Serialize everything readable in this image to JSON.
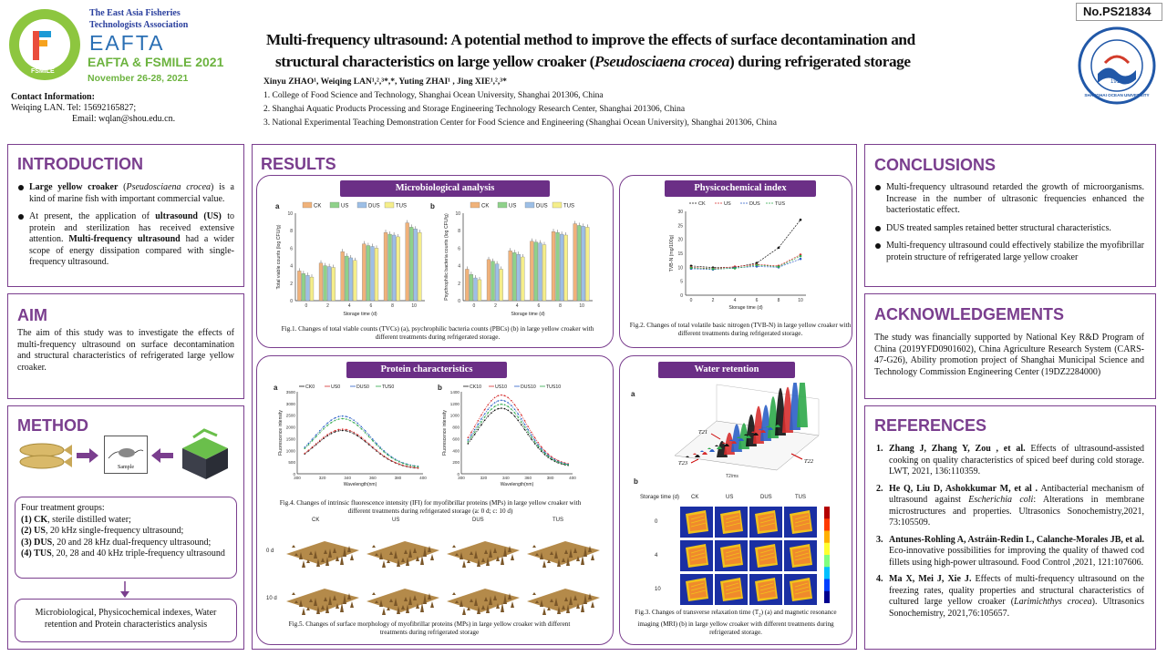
{
  "header": {
    "org_line1": "The East Asia Fisheries",
    "org_line2": "Technologists Association",
    "eafta": "EAFTA",
    "conference": "EAFTA & FSMILE 2021",
    "dates": "November 26-28, 2021",
    "logo_ring_text": "FSMILE",
    "poster_no": "No.PS21834",
    "title_line1": "Multi-frequency ultrasound: A potential method to improve the effects of surface decontamination and",
    "title_line2_a": "structural characteristics on large yellow croaker (",
    "title_line2_species": "Pseudosciaena crocea",
    "title_line2_b": ") during refrigerated storage",
    "authors": "Xinyu ZHAO¹,  Weiqing LAN¹,²,³*,*,  Yuting ZHAI¹ , Jing XIE¹,²,³*",
    "affil1": "1. College of Food Science and Technology, Shanghai Ocean University, Shanghai 201306, China",
    "affil2": "2. Shanghai Aquatic Products Processing and Storage Engineering Technology Research Center, Shanghai 201306, China",
    "affil3": "3. National Experimental Teaching Demonstration Center for Food Science and Engineering (Shanghai Ocean University), Shanghai 201306, China",
    "contact_title": "Contact Information:",
    "contact_line1": "Weiqing  LAN. Tel: 15692165827;",
    "contact_line2": "Email: wqlan@shou.edu.cn.",
    "university_logo_text": "SHANGHAI OCEAN UNIVERSITY",
    "university_year": "1912"
  },
  "introduction": {
    "title": "INTRODUCTION",
    "b1_bold": "Large yellow croaker",
    "b1_italic": "Pseudosciaena crocea",
    "b1_rest": "is a kind of marine fish with important commercial value.",
    "b2_a": "At present, the application of",
    "b2_bold1": "ultrasound (US)",
    "b2_b": "to protein and sterilization has received extensive attention.",
    "b2_bold2": "Multi-frequency ultrasound",
    "b2_c": "had a wider scope of energy dissipation compared with single-frequency ultrasound."
  },
  "aim": {
    "title": "AIM",
    "text": "The aim of this study was to investigate the effects of multi-frequency ultrasound on surface decontamination and structural characteristics of refrigerated large yellow croaker."
  },
  "method": {
    "title": "METHOD",
    "sample_label": "Sample",
    "groups_title": "Four treatment groups:",
    "g1_no": "(1)",
    "g1_name": "CK",
    "g1_desc": ", sterile distilled water;",
    "g2_no": "(2)",
    "g2_name": "US",
    "g2_desc": ", 20 kHz single-frequency ultrasound;",
    "g3_no": "(3)",
    "g3_name": "DUS",
    "g3_desc": ", 20 and 28 kHz dual-frequency ultrasound;",
    "g4_no": "(4)",
    "g4_name": "TUS",
    "g4_desc": ", 20, 28 and 40 kHz triple-frequency ultrasound",
    "analysis": "Microbiological, Physicochemical indexes, Water retention and Protein characteristics analysis"
  },
  "results": {
    "title": "RESULTS",
    "micro_title": "Microbiological analysis",
    "physico_title": "Physicochemical index",
    "protein_title": "Protein characteristics",
    "water_title": "Water retention",
    "fig1": "Fig.1. Changes of total viable counts (TVCs) (a), psychrophilic bacteria counts (PBCs) (b) in large yellow croaker with different treatments during refrigerated storage.",
    "fig2": "Fig.2. Changes of total volatile basic nitrogen (TVB-N) in large yellow croaker with different treatments during refrigerated storage.",
    "fig3_a": "Fig.3. Changes of transverse relaxation time (T",
    "fig3_sub": "2",
    "fig3_b": ") (a) and magnetic resonance imaging (MRI) (b) in large yellow croaker with different treatments during refrigerated storage.",
    "fig4": "Fig.4. Changes of intrinsic fluorescence intensity (IFI) for myofibrillar proteins (MPs) in large yellow croaker with different treatments during refrigerated storage (a: 0 d; c: 10 d)",
    "fig5": "Fig.5.  Changes of surface morphology of myofibrillar proteins (MPs) in large yellow croaker with different treatments during refrigerated storage",
    "panel_a": "a",
    "panel_b": "b",
    "legend_groups": [
      "CK",
      "US",
      "DUS",
      "TUS"
    ],
    "legend_if0": [
      "CK0",
      "US0",
      "DUS0",
      "TUS0"
    ],
    "legend_if10": [
      "CK10",
      "US10",
      "DUS10",
      "TUS10"
    ],
    "axis_storage": "Storage time (d)",
    "axis_tvc": "Total viable counts (log CFU/g)",
    "axis_pbc": "Psychrophilic bacteria counts (log CFU/g)",
    "axis_tvbn": "TVB-N (mg/100g)",
    "axis_fluo": "Fluorescence intensity",
    "axis_wave": "Wavelength(nm)",
    "mri_axis": "Storage time (d)",
    "mri_days": [
      "0",
      "4",
      "10"
    ],
    "afm_days": [
      "0 d",
      "10 d"
    ],
    "t21": "T21",
    "t22": "T22",
    "t23": "T23",
    "t2ms": "T2/ms"
  },
  "chart_data": [
    {
      "type": "bar",
      "title": "",
      "xlabel": "Storage time (d)",
      "ylabel": "Total viable counts (log CFU/g)",
      "categories": [
        "0",
        "2",
        "4",
        "6",
        "8",
        "10"
      ],
      "ylim": [
        0,
        10
      ],
      "series": [
        {
          "name": "CK",
          "values": [
            3.4,
            4.3,
            5.6,
            6.5,
            7.8,
            8.9
          ]
        },
        {
          "name": "US",
          "values": [
            3.1,
            4.0,
            5.1,
            6.3,
            7.6,
            8.4
          ]
        },
        {
          "name": "DUS",
          "values": [
            2.9,
            3.9,
            4.9,
            6.2,
            7.5,
            8.2
          ]
        },
        {
          "name": "TUS",
          "values": [
            2.7,
            3.8,
            4.6,
            6.0,
            7.3,
            7.8
          ]
        }
      ]
    },
    {
      "type": "bar",
      "title": "",
      "xlabel": "Storage time (d)",
      "ylabel": "Psychrophilic bacteria counts (log CFU/g)",
      "categories": [
        "0",
        "2",
        "4",
        "6",
        "8",
        "10"
      ],
      "ylim": [
        0,
        10
      ],
      "series": [
        {
          "name": "CK",
          "values": [
            3.6,
            4.7,
            5.7,
            6.8,
            7.9,
            8.8
          ]
        },
        {
          "name": "US",
          "values": [
            3.0,
            4.5,
            5.5,
            6.7,
            7.8,
            8.6
          ]
        },
        {
          "name": "DUS",
          "values": [
            2.6,
            4.2,
            5.3,
            6.6,
            7.6,
            8.5
          ]
        },
        {
          "name": "TUS",
          "values": [
            2.4,
            3.6,
            5.0,
            6.4,
            7.5,
            8.4
          ]
        }
      ]
    },
    {
      "type": "line",
      "title": "",
      "xlabel": "Storage time (d)",
      "ylabel": "TVB-N (mg/100g)",
      "x": [
        0,
        2,
        4,
        6,
        8,
        10
      ],
      "ylim": [
        0,
        30
      ],
      "series": [
        {
          "name": "CK",
          "values": [
            10.5,
            9.9,
            10.0,
            11.5,
            17.0,
            27.0
          ]
        },
        {
          "name": "US",
          "values": [
            10.0,
            9.5,
            10.2,
            11.0,
            10.5,
            14.5
          ]
        },
        {
          "name": "DUS",
          "values": [
            9.5,
            9.2,
            9.8,
            10.3,
            10.0,
            13.0
          ]
        },
        {
          "name": "TUS",
          "values": [
            9.8,
            9.4,
            9.6,
            10.8,
            10.2,
            14.0
          ]
        }
      ]
    },
    {
      "type": "line",
      "title": "",
      "xlabel": "Wavelength(nm)",
      "ylabel": "Fluorescence intensity",
      "xlim": [
        300,
        400
      ],
      "ylim": [
        0,
        3500
      ],
      "series": [
        {
          "name": "CK0",
          "peak": 1650
        },
        {
          "name": "US0",
          "peak": 1700
        },
        {
          "name": "DUS0",
          "peak": 2200
        },
        {
          "name": "TUS0",
          "peak": 2100
        }
      ]
    },
    {
      "type": "line",
      "title": "",
      "xlabel": "Wavelength(nm)",
      "ylabel": "Fluorescence intensity",
      "xlim": [
        300,
        400
      ],
      "ylim": [
        0,
        1400
      ],
      "series": [
        {
          "name": "CK10",
          "peak": 1000
        },
        {
          "name": "US10",
          "peak": 1200
        },
        {
          "name": "DUS10",
          "peak": 1120
        },
        {
          "name": "TUS10",
          "peak": 1060
        }
      ]
    }
  ],
  "conclusions": {
    "title": "CONCLUSIONS",
    "b1": "Multi-frequency ultrasound retarded the growth of microorganisms. Increase in the number of ultrasonic frequencies enhanced the bacteriostatic effect.",
    "b2": "DUS treated samples retained better structural characteristics.",
    "b3": "Multi-frequency ultrasound could effectively stabilize the myofibrillar protein structure of refrigerated large yellow croaker"
  },
  "acknowledgements": {
    "title": "ACKNOWLEDGEMENTS",
    "text": "The study was financially supported by National Key R&D Program of China (2019YFD0901602), China Agriculture Research System (CARS-47-G26), Ability promotion project of Shanghai Municipal Science and Technology Commission Engineering Center (19DZ2284000)"
  },
  "references": {
    "title": "REFERENCES",
    "r1_no": "1.",
    "r1_auth": "Zhang J, Zhang Y, Zou , et al.",
    "r1_text": "Effects of ultrasound-assisted cooking on quality characteristics of spiced beef during cold storage. LWT, 2021, 136:110359.",
    "r2_no": "2.",
    "r2_auth": "He Q, Liu D, Ashokkumar M, et al .",
    "r2_a": "Antibacterial mechanism of ultrasound against",
    "r2_it": "Escherichia coli",
    "r2_b": ": Alterations in membrane microstructures and properties. Ultrasonics Sonochemistry,2021, 73:105509.",
    "r3_no": "3.",
    "r3_auth": "Antunes-Rohling A, Astráin-Redin L, Calanche-Morales JB, et al.",
    "r3_text": "Eco-innovative possibilities for improving the quality of thawed cod fillets using high-power ultrasound. Food Control ,2021, 121:107606.",
    "r4_no": "4.",
    "r4_auth": "Ma X, Mei J,  Xie J.",
    "r4_a": "Effects of multi-frequency ultrasound on the freezing rates, quality properties and structural characteristics of cultured large yellow croaker (",
    "r4_it": "Larimichthys crocea",
    "r4_b": "). Ultrasonics Sonochemistry, 2021,76:105657."
  },
  "colors": {
    "accent": "#7a3e8e",
    "banner": "#6b2f86",
    "ck": "#f0b27a",
    "us": "#8fd18a",
    "dus": "#9dbfe6",
    "tus": "#f5ee8a"
  }
}
